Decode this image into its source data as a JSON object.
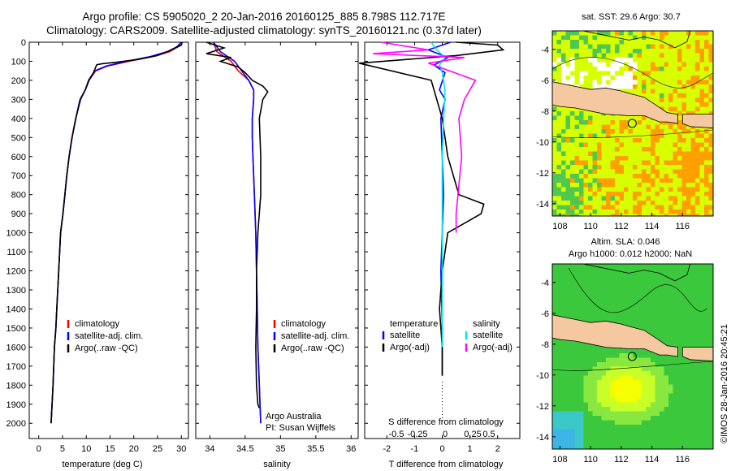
{
  "header": {
    "title_line1": "Argo profile: CS 5905020_2 20-Jan-2016 20160125_885 8.798S 112.717E",
    "title_line2": "Climatology: CARS2009. Satellite-adjusted climatology: synTS_20160121.nc (0.37d later)"
  },
  "timestamp": "©IMOS 28-Jan-2016 20:45:21",
  "depth_ticks": [
    0,
    100,
    200,
    300,
    400,
    500,
    600,
    700,
    800,
    900,
    1000,
    1100,
    1200,
    1300,
    1400,
    1500,
    1600,
    1700,
    1800,
    1900,
    2000
  ],
  "chart_data": [
    {
      "id": "temperature",
      "type": "line",
      "xlabel": "temperature (deg C)",
      "ylabel": "",
      "xlim": [
        -2,
        31.5
      ],
      "ylim": [
        2080,
        0
      ],
      "xticks": [
        0,
        5,
        10,
        15,
        20,
        25,
        30
      ],
      "legend": {
        "position": "lower-center",
        "entries": [
          "climatology",
          "satellite-adj. clim.",
          "Argo(..raw -QC)"
        ]
      },
      "series": [
        {
          "name": "climatology",
          "color": "#ff0000",
          "x": [
            29.8,
            29.5,
            27.5,
            24.0,
            19.0,
            14.5,
            12.0,
            10.6,
            9.8,
            8.7,
            7.8,
            7.0,
            6.4,
            5.9,
            5.5,
            5.1,
            4.6,
            4.2,
            3.8,
            3.6,
            3.3,
            3.0,
            2.8,
            2.6
          ],
          "y": [
            0,
            20,
            50,
            75,
            100,
            125,
            150,
            200,
            250,
            300,
            400,
            500,
            600,
            700,
            800,
            900,
            1000,
            1200,
            1400,
            1500,
            1600,
            1800,
            1900,
            2000
          ]
        },
        {
          "name": "satellite-adj. clim.",
          "color": "#0000ff",
          "x": [
            30.0,
            29.0,
            27.0,
            23.5,
            18.5,
            14.2,
            11.8,
            10.6,
            9.8,
            8.7,
            7.8,
            7.0,
            6.4,
            5.9,
            5.5,
            5.1,
            4.6,
            4.2,
            3.8,
            3.6,
            3.3,
            3.0,
            2.8,
            2.6
          ],
          "y": [
            0,
            25,
            50,
            75,
            100,
            125,
            150,
            200,
            250,
            300,
            400,
            500,
            600,
            700,
            800,
            900,
            1000,
            1200,
            1400,
            1500,
            1600,
            1800,
            1900,
            2000
          ]
        },
        {
          "name": "Argo(..raw -QC)",
          "color": "#000000",
          "x": [
            30.2,
            30.0,
            28.0,
            25.0,
            21.0,
            16.5,
            13.5,
            12.2,
            11.5,
            10.5,
            9.8,
            8.8,
            7.8,
            7.0,
            6.4,
            5.9,
            5.5,
            5.1,
            4.6,
            4.2,
            3.8,
            3.6,
            3.3,
            3.0,
            2.8,
            2.6
          ],
          "y": [
            0,
            15,
            40,
            70,
            90,
            105,
            112,
            118,
            160,
            200,
            250,
            300,
            400,
            500,
            600,
            700,
            800,
            900,
            1000,
            1200,
            1400,
            1500,
            1600,
            1800,
            1900,
            2000
          ]
        }
      ]
    },
    {
      "id": "salinity",
      "type": "line",
      "xlabel": "salinity",
      "ylabel": "",
      "xlim": [
        33.8,
        36.1
      ],
      "ylim": [
        2080,
        0
      ],
      "xticks": [
        34,
        34.5,
        35,
        35.5,
        36
      ],
      "annotation": [
        "Argo Australia",
        "PI: Susan Wijffels"
      ],
      "legend": {
        "position": "lower-center",
        "entries": [
          "climatology",
          "satellite-adj. clim.",
          "Argo(..raw -QC)"
        ]
      },
      "series": [
        {
          "name": "climatology",
          "color": "#ff0000",
          "x": [
            34.05,
            34.1,
            34.3,
            34.4,
            34.55,
            34.62,
            34.62,
            34.6,
            34.6,
            34.61,
            34.63,
            34.65,
            34.66,
            34.67,
            34.68,
            34.7,
            34.71,
            34.72
          ],
          "y": [
            0,
            50,
            100,
            150,
            200,
            250,
            300,
            400,
            500,
            600,
            800,
            1000,
            1200,
            1400,
            1600,
            1800,
            1900,
            2000
          ]
        },
        {
          "name": "satellite-adj. clim.",
          "color": "#0000ff",
          "x": [
            34.05,
            34.15,
            34.35,
            34.45,
            34.55,
            34.62,
            34.62,
            34.6,
            34.6,
            34.61,
            34.63,
            34.65,
            34.66,
            34.67,
            34.68,
            34.7,
            34.71,
            34.72
          ],
          "y": [
            0,
            50,
            100,
            150,
            200,
            250,
            300,
            400,
            500,
            600,
            800,
            1000,
            1200,
            1400,
            1600,
            1800,
            1900,
            2000
          ]
        },
        {
          "name": "Argo(..raw -QC)",
          "color": "#000000",
          "x": [
            33.95,
            34.2,
            33.95,
            34.3,
            34.15,
            34.4,
            34.5,
            34.6,
            34.75,
            34.82,
            34.75,
            34.7,
            34.72,
            34.72,
            34.68,
            34.66,
            34.66,
            34.65,
            34.66,
            34.68,
            34.7
          ],
          "y": [
            0,
            30,
            60,
            80,
            100,
            130,
            160,
            200,
            230,
            260,
            300,
            400,
            600,
            800,
            1000,
            1200,
            1400,
            1600,
            1800,
            1900,
            1920
          ]
        }
      ]
    },
    {
      "id": "differences",
      "type": "line",
      "xlabel": "T difference from climatology",
      "x2label": "S difference from climatology",
      "ylabel": "",
      "xlim": [
        -2.8,
        2.8
      ],
      "ylim": [
        2080,
        0
      ],
      "xticks": [
        -2,
        -1,
        0,
        1,
        2
      ],
      "x2ticks": [
        -0.5,
        -0.25,
        0,
        0.25,
        0.5
      ],
      "legend": {
        "position": "lower-center",
        "entries": [
          "temperature",
          "satellite",
          "Argo(-adj)",
          "salinity",
          "satellite",
          "Argo(-adj)"
        ]
      },
      "series": [
        {
          "name": "temperature satellite",
          "color": "#0000ff",
          "x": [
            0.3,
            -0.5,
            0.2,
            -0.3,
            0.1,
            -0.1,
            0.1,
            -0.05,
            0.0,
            0.05,
            0.0,
            -0.05,
            0.0,
            0.0,
            0.0
          ],
          "y": [
            0,
            40,
            80,
            120,
            160,
            250,
            300,
            400,
            600,
            800,
            1000,
            1200,
            1500,
            1700,
            1750
          ]
        },
        {
          "name": "temperature Argo(-adj)",
          "color": "#000000",
          "x": [
            0.5,
            2.0,
            2.2,
            0.5,
            -3.0,
            -0.4,
            -0.2,
            0.0,
            0.1,
            0.2,
            0.6,
            1.5,
            1.4,
            0.8,
            0.2,
            0.0,
            -0.1,
            0.0,
            0.0
          ],
          "y": [
            0,
            15,
            40,
            70,
            110,
            200,
            300,
            400,
            500,
            600,
            800,
            850,
            900,
            950,
            1000,
            1200,
            1400,
            1600,
            1750
          ]
        },
        {
          "name": "salinity satellite",
          "color": "#00e5ee",
          "x": [
            -0.4,
            -0.2,
            0.1,
            -0.1,
            0.0,
            0.1,
            0.05,
            0.0,
            0.0,
            0.0,
            0.0,
            0.0,
            0.0
          ],
          "y": [
            0,
            40,
            80,
            120,
            160,
            250,
            400,
            600,
            800,
            1000,
            1200,
            1500,
            1600
          ]
        },
        {
          "name": "salinity Argo(-adj)",
          "color": "#ff00ff",
          "x": [
            -2.2,
            -0.5,
            -2.5,
            0.8,
            -0.5,
            1.2,
            0.8,
            0.6,
            0.7,
            0.5,
            0.5
          ],
          "y": [
            0,
            40,
            60,
            80,
            110,
            200,
            300,
            400,
            600,
            900,
            1000
          ]
        }
      ]
    },
    {
      "id": "sst_map",
      "type": "heatmap",
      "title": "sat. SST: 29.6  Argo: 30.7",
      "xlim": [
        107.5,
        118
      ],
      "ylim": [
        -14.8,
        -2.8
      ],
      "xticks": [
        108,
        110,
        112,
        114,
        116
      ],
      "yticks": [
        -4,
        -6,
        -8,
        -10,
        -12,
        -14
      ],
      "marker": {
        "lon": 112.717,
        "lat": -8.798
      },
      "colors": {
        "low": "#4fc84f",
        "mid": "#d8ff00",
        "high": "#ffa000",
        "land": "#f5c8a0",
        "missing": "#ffffff"
      }
    },
    {
      "id": "sla_map",
      "type": "heatmap",
      "title": "Altim. SLA: 0.046",
      "subtitle": "Argo h1000: 0.012  h2000: NaN",
      "xlim": [
        107.5,
        118
      ],
      "ylim": [
        -14.8,
        -2.8
      ],
      "xticks": [
        108,
        110,
        112,
        114,
        116
      ],
      "yticks": [
        -4,
        -6,
        -8,
        -10,
        -12,
        -14
      ],
      "marker": {
        "lon": 112.717,
        "lat": -8.798
      },
      "colors": {
        "base": "#3cc83c",
        "blob": "#f0ff00",
        "cool": "#3cb4e6",
        "land": "#f5c8a0"
      }
    }
  ]
}
